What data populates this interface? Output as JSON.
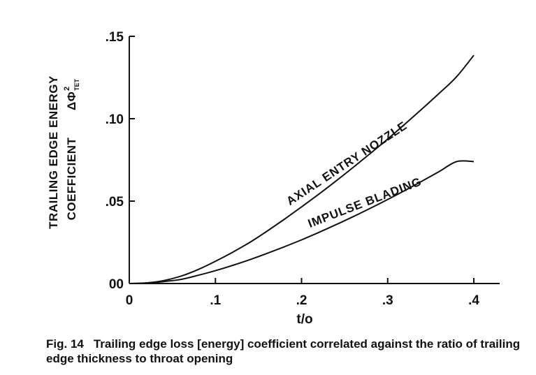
{
  "chart_data": {
    "type": "line",
    "xlabel": "t/o",
    "ylabel_line1": "TRAILING EDGE ENERGY",
    "ylabel_line2": "COEFFICIENT",
    "ylabel_symbol": "ΔΦ",
    "ylabel_sup": "2",
    "ylabel_sub": "TET",
    "xlim": [
      0,
      0.43
    ],
    "ylim": [
      0,
      0.15
    ],
    "x_ticks": [
      "0",
      ".1",
      ".2",
      ".3",
      ".4"
    ],
    "y_ticks": [
      "00",
      ".05",
      ".10",
      ".15"
    ],
    "grid": false,
    "series": [
      {
        "name": "AXIAL ENTRY NOZZLE",
        "x": [
          0,
          0.02,
          0.04,
          0.06,
          0.08,
          0.1,
          0.12,
          0.14,
          0.16,
          0.18,
          0.2,
          0.22,
          0.24,
          0.26,
          0.28,
          0.3,
          0.32,
          0.34,
          0.36,
          0.38,
          0.4
        ],
        "y": [
          0,
          0.0004,
          0.0018,
          0.0045,
          0.0085,
          0.0135,
          0.019,
          0.025,
          0.0318,
          0.039,
          0.0465,
          0.0542,
          0.0622,
          0.0705,
          0.079,
          0.0877,
          0.0967,
          0.106,
          0.1155,
          0.1255,
          0.1385
        ]
      },
      {
        "name": "IMPULSE BLADING",
        "x": [
          0,
          0.02,
          0.04,
          0.06,
          0.08,
          0.1,
          0.12,
          0.14,
          0.16,
          0.18,
          0.2,
          0.22,
          0.24,
          0.26,
          0.28,
          0.3,
          0.32,
          0.34,
          0.36,
          0.38,
          0.4
        ],
        "y": [
          0,
          0.0003,
          0.0012,
          0.0025,
          0.005,
          0.0078,
          0.011,
          0.0145,
          0.0183,
          0.0223,
          0.0265,
          0.031,
          0.0357,
          0.0406,
          0.0457,
          0.051,
          0.0565,
          0.0622,
          0.068,
          0.074,
          0.074
        ]
      }
    ]
  },
  "caption": {
    "fig_num": "Fig. 14",
    "text": "Trailing edge loss [energy] coefficient correlated against the ratio of trailing edge thickness to throat opening"
  }
}
